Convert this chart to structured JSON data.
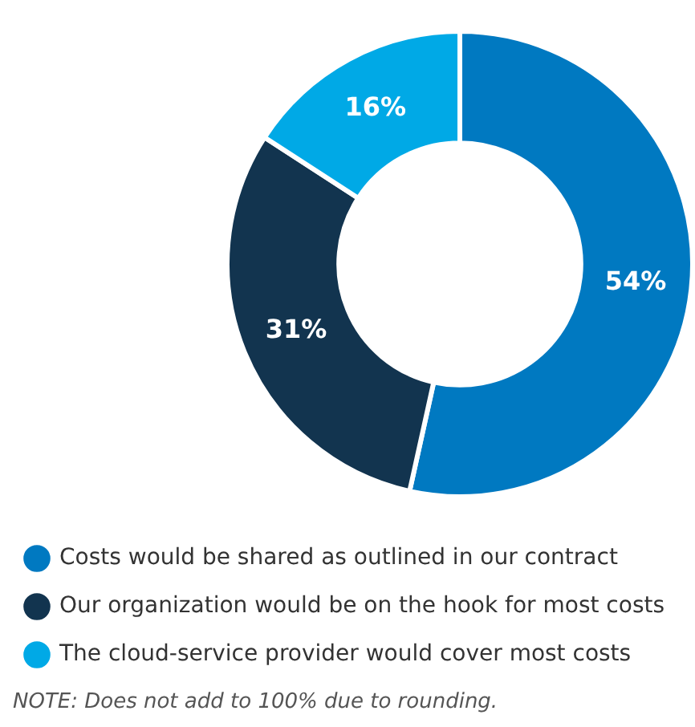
{
  "chart_data": {
    "type": "donut",
    "categories": [
      "Costs would be shared as outlined in our contract",
      "Our organization would be on the hook for most costs",
      "The cloud-service provider would cover most costs"
    ],
    "values": [
      54,
      31,
      16
    ],
    "colors": [
      "#0079c1",
      "#12344f",
      "#00a9e6"
    ],
    "value_labels": [
      "54%",
      "31%",
      "16%"
    ],
    "legend": "bottom",
    "annotations": [
      "NOTE: Does not add to 100% due to rounding."
    ]
  }
}
